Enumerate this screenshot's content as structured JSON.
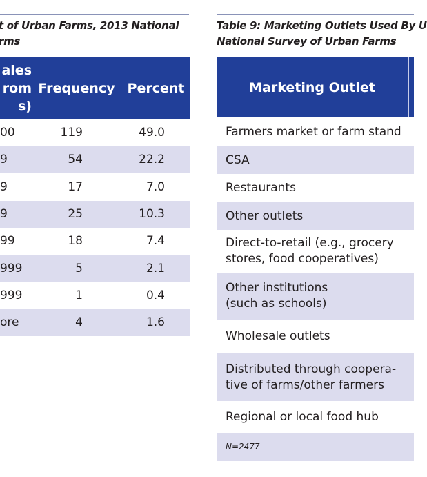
{
  "left_table": {
    "title_lines": [
      "t of Urban Farms, 2013 National",
      "rms"
    ],
    "headers": {
      "sales_lines": [
        "ales",
        "rom",
        "s)"
      ],
      "frequency": "Frequency",
      "percent": "Percent"
    },
    "rows": [
      {
        "range": "00",
        "frequency": "119",
        "percent": "49.0"
      },
      {
        "range": "9",
        "frequency": "54",
        "percent": "22.2"
      },
      {
        "range": "9",
        "frequency": "17",
        "percent": "7.0"
      },
      {
        "range": "9",
        "frequency": "25",
        "percent": "10.3"
      },
      {
        "range": "99",
        "frequency": "18",
        "percent": "7.4"
      },
      {
        "range": "999",
        "frequency": "5",
        "percent": "2.1"
      },
      {
        "range": "999",
        "frequency": "1",
        "percent": "0.4"
      },
      {
        "range": "ore",
        "frequency": "4",
        "percent": "1.6"
      }
    ]
  },
  "right_table": {
    "title_lines": [
      "Table 9: Marketing Outlets Used By U",
      "National Survey of Urban Farms"
    ],
    "header": "Marketing Outlet",
    "rows": [
      {
        "lines": [
          "Farmers market or farm stand"
        ]
      },
      {
        "lines": [
          "CSA"
        ]
      },
      {
        "lines": [
          "Restaurants"
        ]
      },
      {
        "lines": [
          "Other outlets"
        ]
      },
      {
        "lines": [
          "Direct-to-retail (e.g., grocery",
          "stores, food cooperatives)"
        ]
      },
      {
        "lines": [
          "Other institutions",
          "(such as schools)"
        ]
      },
      {
        "lines": [
          "Wholesale outlets"
        ]
      },
      {
        "lines": [
          "Distributed through coopera-",
          "tive of farms/other farmers"
        ]
      },
      {
        "lines": [
          "Regional or local food hub"
        ]
      }
    ],
    "footnote": "N=2477"
  },
  "colors": {
    "header": "#213f99",
    "shade": "#dcdcee"
  }
}
